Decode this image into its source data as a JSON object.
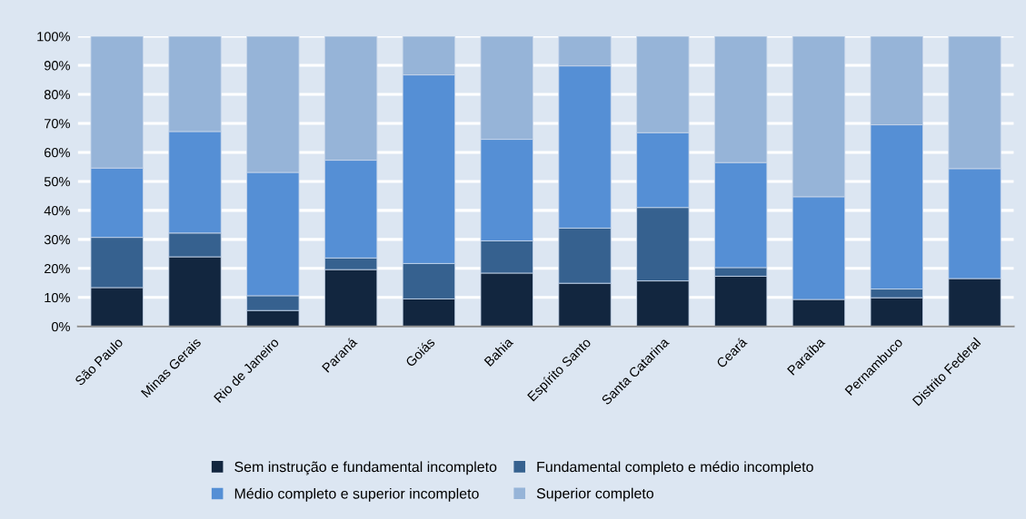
{
  "chart_data": {
    "type": "bar",
    "stacked": true,
    "categories": [
      "São Paulo",
      "Minas Gerais",
      "Rio de Janeiro",
      "Paraná",
      "Goiás",
      "Bahia",
      "Espírito Santo",
      "Santa Catarina",
      "Ceará",
      "Paraíba",
      "Pernambuco",
      "Distrito Federal"
    ],
    "series": [
      {
        "name": "Sem instrução e fundamental incompleto",
        "color": "#12263f",
        "values": [
          13.4,
          24.0,
          5.5,
          19.6,
          9.5,
          18.4,
          14.9,
          15.7,
          17.3,
          9.3,
          9.9,
          16.5
        ]
      },
      {
        "name": "Fundamental completo e médio incompleto",
        "color": "#36618f",
        "values": [
          17.3,
          8.2,
          5.1,
          4.0,
          12.2,
          11.1,
          19.0,
          25.3,
          3.0,
          0,
          3.0,
          0
        ]
      },
      {
        "name": "Médio completo e superior incompleto",
        "color": "#558fd5",
        "values": [
          23.9,
          35.0,
          42.5,
          33.7,
          65.0,
          35.0,
          55.9,
          25.8,
          36.2,
          35.4,
          56.6,
          37.9
        ]
      },
      {
        "name": "Superior completo",
        "color": "#96b4d8",
        "values": [
          45.4,
          32.8,
          46.9,
          42.7,
          13.3,
          35.5,
          10.2,
          33.2,
          43.5,
          55.3,
          30.5,
          45.6
        ]
      }
    ],
    "ylim": [
      0,
      100
    ],
    "yticks": [
      {
        "value": 0,
        "label": "0%"
      },
      {
        "value": 10,
        "label": "10%"
      },
      {
        "value": 20,
        "label": "20%"
      },
      {
        "value": 30,
        "label": "30%"
      },
      {
        "value": 40,
        "label": "40%"
      },
      {
        "value": 50,
        "label": "50%"
      },
      {
        "value": 60,
        "label": "60%"
      },
      {
        "value": 70,
        "label": "70%"
      },
      {
        "value": 80,
        "label": "80%"
      },
      {
        "value": 90,
        "label": "90%"
      },
      {
        "value": 100,
        "label": "100%"
      }
    ],
    "grid": "y",
    "legend": "bottom"
  }
}
